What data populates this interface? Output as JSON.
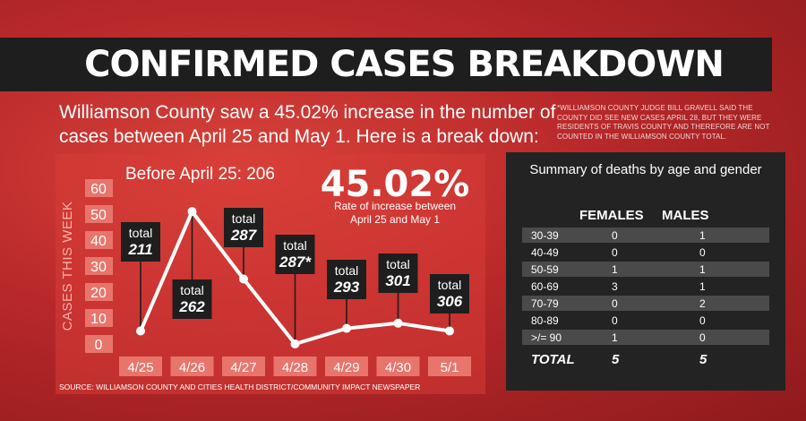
{
  "header": {
    "title": "CONFIRMED CASES BREAKDOWN",
    "intro": "Williamson County saw a 45.02% increase in the number of cases between April 25 and May 1. Here is a break down:",
    "footnote": "*WILLIAMSON COUNTY JUDGE BILL GRAVELL SAID THE COUNTY DID SEE NEW CASES APRIL 28, BUT THEY WERE RESIDENTS OF TRAVIS COUNTY AND THEREFORE ARE NOT COUNTED IN THE WILLIAMSON COUNTY TOTAL."
  },
  "chart_data": {
    "type": "line",
    "subtitle": "Before April 25: 206",
    "ylabel": "CASES THIS WEEK",
    "ylim": [
      0,
      60
    ],
    "yticks": [
      0,
      10,
      20,
      30,
      40,
      50,
      60
    ],
    "categories": [
      "4/25",
      "4/26",
      "4/27",
      "4/28",
      "4/29",
      "4/30",
      "5/1"
    ],
    "values": [
      5,
      51,
      25,
      0,
      6,
      8,
      5
    ],
    "total_word": "total",
    "totals": [
      "211",
      "262",
      "287",
      "287*",
      "293",
      "301",
      "306"
    ],
    "rate_value": "45.02%",
    "rate_label": "Rate of increase between April 25 and May 1",
    "source": "SOURCE: WILLIAMSON COUNTY AND CITIES HEALTH DISTRICT/COMMUNITY IMPACT NEWSPAPER",
    "line_color": "#ffffff",
    "callout_color": "#1e1e1e",
    "tick_bg": "#e8756c"
  },
  "deaths": {
    "title": "Summary of deaths by age and gender",
    "col_females": "FEMALES",
    "col_males": "MALES",
    "rows": [
      {
        "age": "30-39",
        "females": "0",
        "males": "1"
      },
      {
        "age": "40-49",
        "females": "0",
        "males": "0"
      },
      {
        "age": "50-59",
        "females": "1",
        "males": "1"
      },
      {
        "age": "60-69",
        "females": "3",
        "males": "1"
      },
      {
        "age": "70-79",
        "females": "0",
        "males": "2"
      },
      {
        "age": "80-89",
        "females": "0",
        "males": "0"
      },
      {
        "age": ">/= 90",
        "females": "1",
        "males": "0"
      }
    ],
    "total": {
      "age": "TOTAL",
      "females": "5",
      "males": "5"
    }
  }
}
